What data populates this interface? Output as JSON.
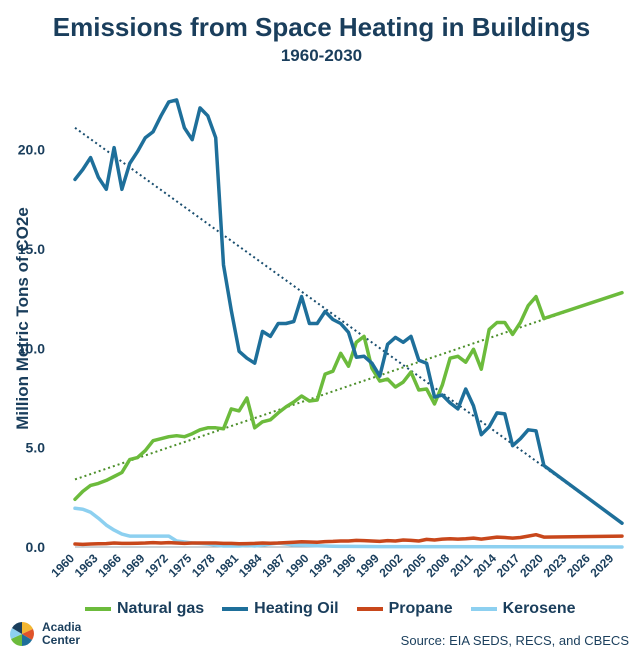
{
  "chart_data": {
    "type": "line",
    "title": "Emissions from Space Heating in Buildings",
    "subtitle": "1960-2030",
    "ylabel": "Million Metric Tons of CO2e",
    "xlabel": "",
    "xlim": [
      1960,
      2030
    ],
    "ylim": [
      0,
      23
    ],
    "yticks": [
      0,
      5,
      10,
      15,
      20
    ],
    "ytick_labels": [
      "0.0",
      "5.0",
      "10.0",
      "15.0",
      "20.0"
    ],
    "xticks": [
      1960,
      1963,
      1966,
      1969,
      1972,
      1975,
      1978,
      1981,
      1984,
      1987,
      1990,
      1993,
      1996,
      1999,
      2002,
      2005,
      2008,
      2011,
      2014,
      2017,
      2020,
      2023,
      2026,
      2029
    ],
    "grid": false,
    "legend_position": "bottom",
    "series": [
      {
        "name": "Natural gas",
        "color": "#6cbb3c",
        "points": [
          [
            1960,
            2.4
          ],
          [
            1961,
            2.8
          ],
          [
            1962,
            3.1
          ],
          [
            1963,
            3.2
          ],
          [
            1964,
            3.35
          ],
          [
            1965,
            3.55
          ],
          [
            1966,
            3.75
          ],
          [
            1967,
            4.4
          ],
          [
            1968,
            4.5
          ],
          [
            1969,
            4.85
          ],
          [
            1970,
            5.35
          ],
          [
            1971,
            5.45
          ],
          [
            1972,
            5.55
          ],
          [
            1973,
            5.6
          ],
          [
            1974,
            5.55
          ],
          [
            1975,
            5.7
          ],
          [
            1976,
            5.9
          ],
          [
            1977,
            6.0
          ],
          [
            1978,
            6.0
          ],
          [
            1979,
            5.95
          ],
          [
            1980,
            6.95
          ],
          [
            1981,
            6.85
          ],
          [
            1982,
            7.5
          ],
          [
            1983,
            6.0
          ],
          [
            1984,
            6.3
          ],
          [
            1985,
            6.4
          ],
          [
            1986,
            6.75
          ],
          [
            1987,
            7.05
          ],
          [
            1988,
            7.3
          ],
          [
            1989,
            7.6
          ],
          [
            1990,
            7.35
          ],
          [
            1991,
            7.4
          ],
          [
            1992,
            8.7
          ],
          [
            1993,
            8.85
          ],
          [
            1994,
            9.75
          ],
          [
            1995,
            9.1
          ],
          [
            1996,
            10.3
          ],
          [
            1997,
            10.6
          ],
          [
            1998,
            9.0
          ],
          [
            1999,
            8.35
          ],
          [
            2000,
            8.45
          ],
          [
            2001,
            8.05
          ],
          [
            2002,
            8.3
          ],
          [
            2003,
            8.8
          ],
          [
            2004,
            7.9
          ],
          [
            2005,
            7.95
          ],
          [
            2006,
            7.2
          ],
          [
            2007,
            8.15
          ],
          [
            2008,
            9.5
          ],
          [
            2009,
            9.6
          ],
          [
            2010,
            9.3
          ],
          [
            2011,
            9.95
          ],
          [
            2012,
            8.95
          ],
          [
            2013,
            10.95
          ],
          [
            2014,
            11.3
          ],
          [
            2015,
            11.3
          ],
          [
            2016,
            10.7
          ],
          [
            2017,
            11.3
          ],
          [
            2018,
            12.15
          ],
          [
            2019,
            12.6
          ],
          [
            2020,
            11.5
          ]
        ]
      },
      {
        "name": "Heating Oil",
        "color": "#1e6f9a",
        "points": [
          [
            1960,
            18.5
          ],
          [
            1961,
            19.0
          ],
          [
            1962,
            19.6
          ],
          [
            1963,
            18.6
          ],
          [
            1964,
            18.0
          ],
          [
            1965,
            20.1
          ],
          [
            1966,
            18.0
          ],
          [
            1967,
            19.3
          ],
          [
            1968,
            19.9
          ],
          [
            1969,
            20.6
          ],
          [
            1970,
            20.9
          ],
          [
            1971,
            21.7
          ],
          [
            1972,
            22.4
          ],
          [
            1973,
            22.5
          ],
          [
            1974,
            21.1
          ],
          [
            1975,
            20.5
          ],
          [
            1976,
            22.1
          ],
          [
            1977,
            21.7
          ],
          [
            1978,
            20.6
          ],
          [
            1979,
            14.2
          ],
          [
            1980,
            11.9
          ],
          [
            1981,
            9.85
          ],
          [
            1982,
            9.5
          ],
          [
            1983,
            9.25
          ],
          [
            1984,
            10.85
          ],
          [
            1985,
            10.6
          ],
          [
            1986,
            11.25
          ],
          [
            1987,
            11.25
          ],
          [
            1988,
            11.35
          ],
          [
            1989,
            12.6
          ],
          [
            1990,
            11.25
          ],
          [
            1991,
            11.25
          ],
          [
            1992,
            11.85
          ],
          [
            1993,
            11.45
          ],
          [
            1994,
            11.25
          ],
          [
            1995,
            10.8
          ],
          [
            1996,
            9.55
          ],
          [
            1997,
            9.6
          ],
          [
            1998,
            9.25
          ],
          [
            1999,
            8.6
          ],
          [
            2000,
            10.2
          ],
          [
            2001,
            10.55
          ],
          [
            2002,
            10.3
          ],
          [
            2003,
            10.6
          ],
          [
            2004,
            9.4
          ],
          [
            2005,
            9.25
          ],
          [
            2006,
            7.55
          ],
          [
            2007,
            7.65
          ],
          [
            2008,
            7.25
          ],
          [
            2009,
            6.95
          ],
          [
            2010,
            7.95
          ],
          [
            2011,
            7.1
          ],
          [
            2012,
            5.65
          ],
          [
            2013,
            6.05
          ],
          [
            2014,
            6.75
          ],
          [
            2015,
            6.7
          ],
          [
            2016,
            5.1
          ],
          [
            2017,
            5.45
          ],
          [
            2018,
            5.9
          ],
          [
            2019,
            5.85
          ],
          [
            2020,
            4.1
          ],
          [
            2030,
            1.2
          ]
        ]
      },
      {
        "name": "Propane",
        "color": "#c8471b",
        "points": [
          [
            1960,
            0.15
          ],
          [
            1961,
            0.13
          ],
          [
            1962,
            0.15
          ],
          [
            1963,
            0.16
          ],
          [
            1964,
            0.17
          ],
          [
            1965,
            0.2
          ],
          [
            1966,
            0.18
          ],
          [
            1967,
            0.18
          ],
          [
            1968,
            0.19
          ],
          [
            1969,
            0.2
          ],
          [
            1970,
            0.22
          ],
          [
            1971,
            0.2
          ],
          [
            1972,
            0.22
          ],
          [
            1973,
            0.2
          ],
          [
            1974,
            0.18
          ],
          [
            1975,
            0.2
          ],
          [
            1976,
            0.2
          ],
          [
            1977,
            0.2
          ],
          [
            1978,
            0.2
          ],
          [
            1979,
            0.18
          ],
          [
            1980,
            0.18
          ],
          [
            1981,
            0.16
          ],
          [
            1982,
            0.17
          ],
          [
            1983,
            0.18
          ],
          [
            1984,
            0.2
          ],
          [
            1985,
            0.19
          ],
          [
            1986,
            0.2
          ],
          [
            1987,
            0.22
          ],
          [
            1988,
            0.24
          ],
          [
            1989,
            0.26
          ],
          [
            1990,
            0.25
          ],
          [
            1991,
            0.24
          ],
          [
            1992,
            0.27
          ],
          [
            1993,
            0.28
          ],
          [
            1994,
            0.3
          ],
          [
            1995,
            0.3
          ],
          [
            1996,
            0.33
          ],
          [
            1997,
            0.32
          ],
          [
            1998,
            0.3
          ],
          [
            1999,
            0.28
          ],
          [
            2000,
            0.32
          ],
          [
            2001,
            0.3
          ],
          [
            2002,
            0.35
          ],
          [
            2003,
            0.33
          ],
          [
            2004,
            0.3
          ],
          [
            2005,
            0.38
          ],
          [
            2006,
            0.35
          ],
          [
            2007,
            0.4
          ],
          [
            2008,
            0.42
          ],
          [
            2009,
            0.4
          ],
          [
            2010,
            0.42
          ],
          [
            2011,
            0.45
          ],
          [
            2012,
            0.4
          ],
          [
            2013,
            0.45
          ],
          [
            2014,
            0.5
          ],
          [
            2015,
            0.48
          ],
          [
            2016,
            0.45
          ],
          [
            2017,
            0.48
          ],
          [
            2018,
            0.55
          ],
          [
            2019,
            0.62
          ],
          [
            2020,
            0.5
          ],
          [
            2030,
            0.55
          ]
        ]
      },
      {
        "name": "Kerosene",
        "color": "#8dd0f0",
        "points": [
          [
            1960,
            1.95
          ],
          [
            1961,
            1.9
          ],
          [
            1962,
            1.75
          ],
          [
            1963,
            1.45
          ],
          [
            1964,
            1.1
          ],
          [
            1965,
            0.85
          ],
          [
            1966,
            0.65
          ],
          [
            1967,
            0.55
          ],
          [
            1968,
            0.55
          ],
          [
            1969,
            0.55
          ],
          [
            1970,
            0.55
          ],
          [
            1971,
            0.55
          ],
          [
            1972,
            0.55
          ],
          [
            1973,
            0.3
          ],
          [
            1974,
            0.25
          ],
          [
            1975,
            0.2
          ],
          [
            1976,
            0.18
          ],
          [
            1977,
            0.15
          ],
          [
            1978,
            0.1
          ],
          [
            1979,
            0.05
          ],
          [
            1980,
            0.05
          ],
          [
            1981,
            0.05
          ],
          [
            1982,
            0.08
          ],
          [
            1983,
            0.05
          ],
          [
            1984,
            0.1
          ],
          [
            1985,
            0.15
          ],
          [
            1986,
            0.2
          ],
          [
            1987,
            0.15
          ],
          [
            1988,
            0.1
          ],
          [
            1989,
            0.1
          ],
          [
            1990,
            0.08
          ],
          [
            1991,
            0.06
          ],
          [
            1992,
            0.05
          ],
          [
            1993,
            0.04
          ],
          [
            1994,
            0.03
          ],
          [
            1995,
            0.03
          ],
          [
            2000,
            0.02
          ],
          [
            2030,
            0.0
          ]
        ]
      }
    ],
    "trendlines": [
      {
        "series": "Heating Oil",
        "color": "#1a4e6f",
        "points": [
          [
            1960,
            21.1
          ],
          [
            2030,
            1.2
          ]
        ]
      },
      {
        "series": "Natural gas",
        "color": "#4c8f2a",
        "points": [
          [
            1960,
            3.4
          ],
          [
            2030,
            12.8
          ]
        ]
      }
    ],
    "projections": [
      {
        "series": "Natural gas",
        "color": "#6cbb3c",
        "points": [
          [
            2020,
            11.5
          ],
          [
            2030,
            12.8
          ]
        ]
      }
    ]
  },
  "legend": [
    {
      "label": "Natural gas",
      "color": "#6cbb3c"
    },
    {
      "label": "Heating Oil",
      "color": "#1e6f9a"
    },
    {
      "label": "Propane",
      "color": "#c8471b"
    },
    {
      "label": "Kerosene",
      "color": "#8dd0f0"
    }
  ],
  "logo": {
    "line1": "Acadia",
    "line2": "Center"
  },
  "source": "Source: EIA SEDS, RECS, and CBECS",
  "colors": {
    "text": "#1a3e5c",
    "axis": "#9aa5ad"
  }
}
